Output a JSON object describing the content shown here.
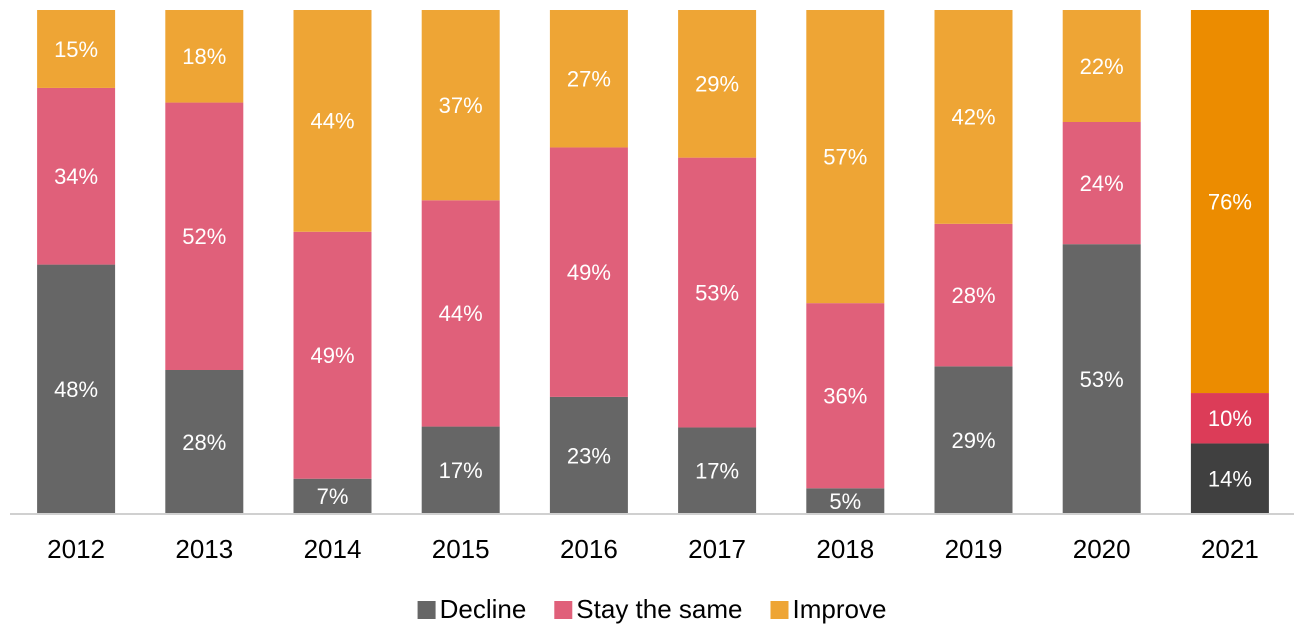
{
  "chart_data": {
    "type": "bar",
    "stacking": "percent",
    "categories": [
      "2012",
      "2013",
      "2014",
      "2015",
      "2016",
      "2017",
      "2018",
      "2019",
      "2020",
      "2021"
    ],
    "series": [
      {
        "name": "Decline",
        "color": "#666666",
        "colors": [
          "#666666",
          "#666666",
          "#666666",
          "#666666",
          "#666666",
          "#666666",
          "#666666",
          "#666666",
          "#666666",
          "#404040"
        ],
        "values": [
          48,
          28,
          7,
          17,
          23,
          17,
          5,
          29,
          53,
          14
        ],
        "value_labels": [
          "48%",
          "28%",
          "7%",
          "17%",
          "23%",
          "17%",
          "5%",
          "29%",
          "53%",
          "14%"
        ]
      },
      {
        "name": "Stay the same",
        "color": "#e0607a",
        "colors": [
          "#e0607a",
          "#e0607a",
          "#e0607a",
          "#e0607a",
          "#e0607a",
          "#e0607a",
          "#e0607a",
          "#e0607a",
          "#e0607a",
          "#dc3c58"
        ],
        "values": [
          34,
          52,
          49,
          44,
          49,
          53,
          36,
          28,
          24,
          10
        ],
        "value_labels": [
          "34%",
          "52%",
          "49%",
          "44%",
          "49%",
          "53%",
          "36%",
          "28%",
          "24%",
          "10%"
        ]
      },
      {
        "name": "Improve",
        "color": "#eea535",
        "colors": [
          "#eea535",
          "#eea535",
          "#eea535",
          "#eea535",
          "#eea535",
          "#eea535",
          "#eea535",
          "#eea535",
          "#eea535",
          "#ec8c00"
        ],
        "values": [
          15,
          18,
          44,
          37,
          27,
          29,
          57,
          42,
          22,
          76
        ],
        "value_labels": [
          "15%",
          "18%",
          "44%",
          "37%",
          "27%",
          "29%",
          "57%",
          "42%",
          "22%",
          "76%"
        ]
      }
    ],
    "legend": "bottom"
  }
}
